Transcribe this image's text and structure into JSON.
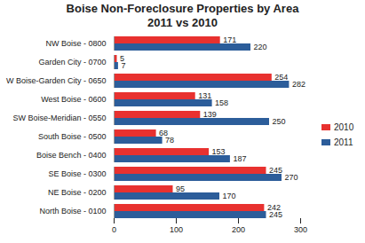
{
  "chart_data": {
    "type": "bar",
    "orientation": "horizontal",
    "title": "Boise Non-Foreclosure Properties by Area",
    "subtitle": "2011 vs 2010",
    "categories": [
      "NW Boise - 0800",
      "Garden City - 0700",
      "W Boise-Garden City - 0650",
      "West Boise - 0600",
      "SW Boise-Meridian - 0550",
      "South Boise - 0500",
      "Boise Bench - 0400",
      "SE Boise - 0300",
      "NE Boise - 0200",
      "North Boise - 0100"
    ],
    "series": [
      {
        "name": "2010",
        "color": "#e8312f",
        "values": [
          171,
          5,
          254,
          131,
          139,
          68,
          153,
          245,
          95,
          242
        ]
      },
      {
        "name": "2011",
        "color": "#2c5d9a",
        "values": [
          220,
          7,
          282,
          158,
          250,
          78,
          187,
          270,
          170,
          245
        ]
      }
    ],
    "xlim": [
      0,
      300
    ],
    "xticks": [
      0,
      100,
      200,
      300
    ],
    "grid": false,
    "legend": "right",
    "data_labels": true
  }
}
